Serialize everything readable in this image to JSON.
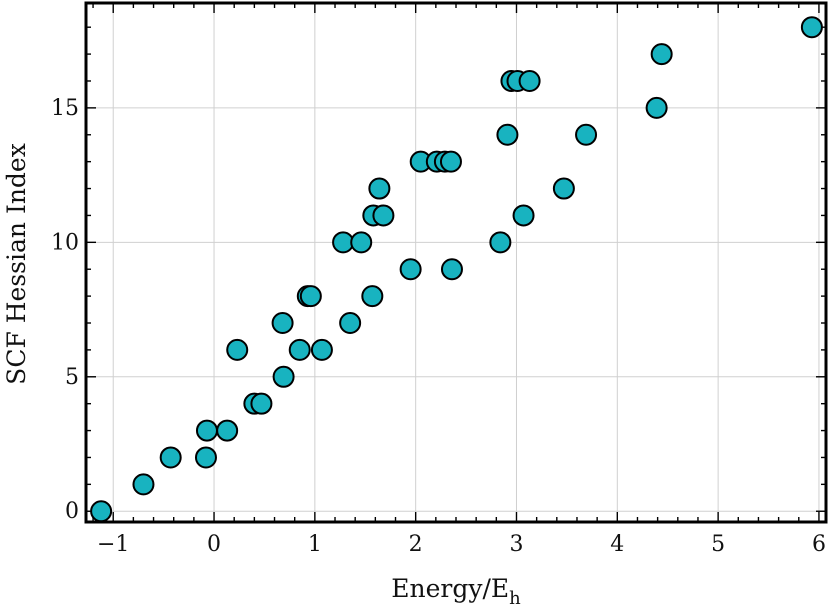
{
  "chart_data": {
    "type": "scatter",
    "title": "",
    "xlabel": "Energy/E",
    "xlabel_subscript": "h",
    "ylabel": "SCF Hessian Index",
    "xlim": [
      -1.27,
      6.07
    ],
    "ylim": [
      -0.4,
      18.9
    ],
    "xticks": [
      -1,
      0,
      1,
      2,
      3,
      4,
      5,
      6
    ],
    "xtick_labels": [
      "−1",
      "0",
      "1",
      "2",
      "3",
      "4",
      "5",
      "6"
    ],
    "yticks": [
      0,
      5,
      10,
      15
    ],
    "ytick_labels": [
      "0",
      "5",
      "10",
      "15"
    ],
    "grid": true,
    "marker_color": "#18b3c0",
    "points": [
      {
        "x": -1.12,
        "y": 0
      },
      {
        "x": -0.7,
        "y": 1
      },
      {
        "x": -0.43,
        "y": 2
      },
      {
        "x": -0.08,
        "y": 2
      },
      {
        "x": -0.07,
        "y": 3
      },
      {
        "x": 0.13,
        "y": 3
      },
      {
        "x": 0.23,
        "y": 6
      },
      {
        "x": 0.4,
        "y": 4
      },
      {
        "x": 0.47,
        "y": 4
      },
      {
        "x": 0.69,
        "y": 5
      },
      {
        "x": 0.68,
        "y": 7
      },
      {
        "x": 0.85,
        "y": 6
      },
      {
        "x": 0.93,
        "y": 8
      },
      {
        "x": 0.96,
        "y": 8
      },
      {
        "x": 1.07,
        "y": 6
      },
      {
        "x": 1.28,
        "y": 10
      },
      {
        "x": 1.35,
        "y": 7
      },
      {
        "x": 1.46,
        "y": 10
      },
      {
        "x": 1.57,
        "y": 8
      },
      {
        "x": 1.58,
        "y": 11
      },
      {
        "x": 1.64,
        "y": 12
      },
      {
        "x": 1.68,
        "y": 11
      },
      {
        "x": 1.95,
        "y": 9
      },
      {
        "x": 2.05,
        "y": 13
      },
      {
        "x": 2.21,
        "y": 13
      },
      {
        "x": 2.29,
        "y": 13
      },
      {
        "x": 2.35,
        "y": 13
      },
      {
        "x": 2.36,
        "y": 9
      },
      {
        "x": 2.84,
        "y": 10
      },
      {
        "x": 2.91,
        "y": 14
      },
      {
        "x": 2.95,
        "y": 16
      },
      {
        "x": 3.01,
        "y": 16
      },
      {
        "x": 3.07,
        "y": 11
      },
      {
        "x": 3.13,
        "y": 16
      },
      {
        "x": 3.47,
        "y": 12
      },
      {
        "x": 3.69,
        "y": 14
      },
      {
        "x": 4.39,
        "y": 15
      },
      {
        "x": 4.44,
        "y": 17
      },
      {
        "x": 5.93,
        "y": 18
      }
    ]
  }
}
